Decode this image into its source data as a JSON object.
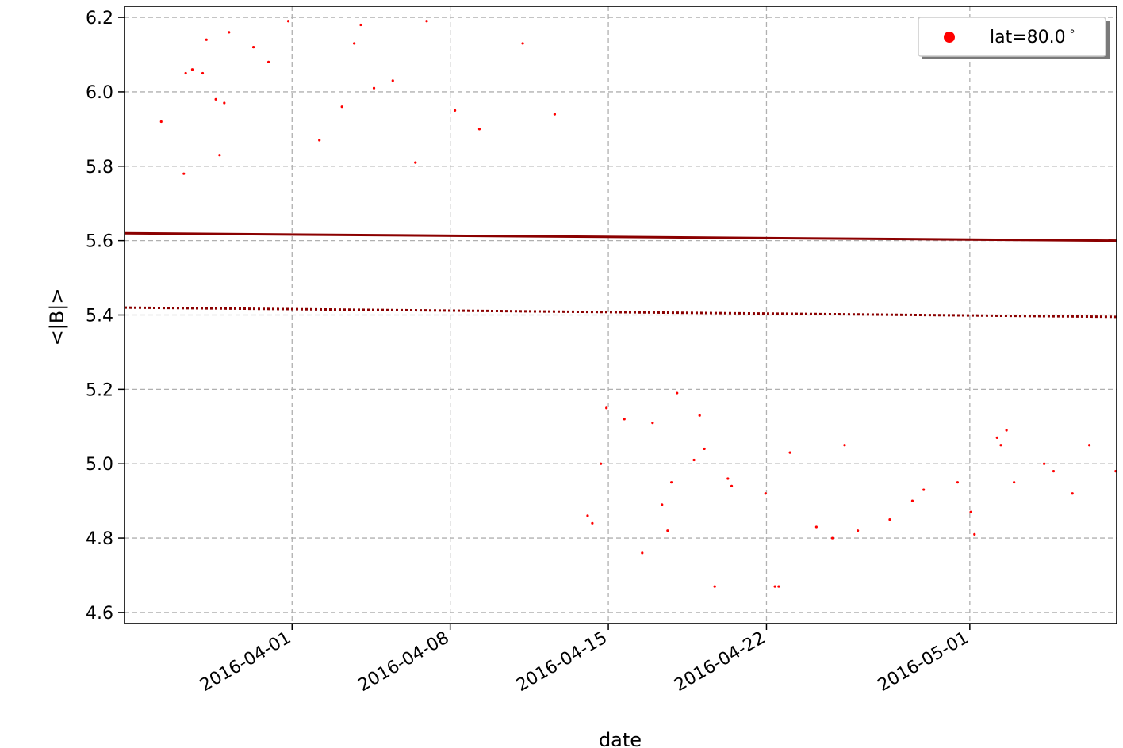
{
  "chart_data": {
    "type": "scatter",
    "title": "",
    "xlabel": "date",
    "ylabel": "<|B|>",
    "xlim": [
      "2016-03-24T14:00",
      "2016-05-07T12:00"
    ],
    "ylim": [
      4.57,
      6.23
    ],
    "grid": true,
    "grid_style": "dashed",
    "legend_position": "top-right",
    "x_ticks": [
      "2016-04-01",
      "2016-04-08",
      "2016-04-15",
      "2016-04-22",
      "2016-05-01"
    ],
    "y_ticks": [
      "4.6",
      "4.8",
      "5.0",
      "5.2",
      "5.4",
      "5.6",
      "5.8",
      "6.0",
      "6.2"
    ],
    "series": [
      {
        "name": "lat=80.0$^\\circ$",
        "legend_label": "lat=80.0",
        "legend_superscript": "∘",
        "kind": "scatter",
        "color": "#ff0000",
        "points": [
          [
            "2016-03-26T05:00",
            5.92
          ],
          [
            "2016-03-27T05:00",
            5.78
          ],
          [
            "2016-03-27T07:00",
            6.05
          ],
          [
            "2016-03-27T14:00",
            6.06
          ],
          [
            "2016-03-28T01:00",
            6.05
          ],
          [
            "2016-03-28T05:00",
            6.14
          ],
          [
            "2016-03-28T15:00",
            5.98
          ],
          [
            "2016-03-28T19:00",
            5.83
          ],
          [
            "2016-03-29T00:00",
            5.97
          ],
          [
            "2016-03-29T05:00",
            6.16
          ],
          [
            "2016-03-30T07:00",
            6.12
          ],
          [
            "2016-03-30T23:00",
            6.08
          ],
          [
            "2016-03-31T20:00",
            6.19
          ],
          [
            "2016-04-02T05:00",
            5.87
          ],
          [
            "2016-04-03T05:00",
            5.96
          ],
          [
            "2016-04-03T18:00",
            6.13
          ],
          [
            "2016-04-04T01:00",
            6.18
          ],
          [
            "2016-04-04T15:00",
            6.01
          ],
          [
            "2016-04-05T11:00",
            6.03
          ],
          [
            "2016-04-06T11:00",
            5.81
          ],
          [
            "2016-04-06T23:00",
            6.19
          ],
          [
            "2016-04-08T05:00",
            5.95
          ],
          [
            "2016-04-09T07:00",
            5.9
          ],
          [
            "2016-04-11T05:00",
            6.13
          ],
          [
            "2016-04-12T15:00",
            5.94
          ],
          [
            "2016-04-14T02:00",
            4.86
          ],
          [
            "2016-04-14T07:00",
            4.84
          ],
          [
            "2016-04-14T16:00",
            5.0
          ],
          [
            "2016-04-14T22:00",
            5.15
          ],
          [
            "2016-04-15T17:00",
            5.12
          ],
          [
            "2016-04-16T12:00",
            4.76
          ],
          [
            "2016-04-16T23:00",
            5.11
          ],
          [
            "2016-04-17T09:00",
            4.89
          ],
          [
            "2016-04-17T15:00",
            4.82
          ],
          [
            "2016-04-17T19:00",
            4.95
          ],
          [
            "2016-04-18T01:00",
            5.19
          ],
          [
            "2016-04-18T19:00",
            5.01
          ],
          [
            "2016-04-19T01:00",
            5.13
          ],
          [
            "2016-04-19T06:00",
            5.04
          ],
          [
            "2016-04-19T17:00",
            4.67
          ],
          [
            "2016-04-20T07:00",
            4.96
          ],
          [
            "2016-04-20T11:00",
            4.94
          ],
          [
            "2016-04-21T23:00",
            4.92
          ],
          [
            "2016-04-22T09:00",
            4.67
          ],
          [
            "2016-04-22T13:00",
            4.67
          ],
          [
            "2016-04-23T01:00",
            5.03
          ],
          [
            "2016-04-24T05:00",
            4.83
          ],
          [
            "2016-04-24T22:00",
            4.8
          ],
          [
            "2016-04-25T11:00",
            5.05
          ],
          [
            "2016-04-26T01:00",
            4.82
          ],
          [
            "2016-04-27T11:00",
            4.85
          ],
          [
            "2016-04-28T11:00",
            4.9
          ],
          [
            "2016-04-28T23:00",
            4.93
          ],
          [
            "2016-04-30T11:00",
            4.95
          ],
          [
            "2016-05-01T01:00",
            4.87
          ],
          [
            "2016-05-01T05:00",
            4.81
          ],
          [
            "2016-05-02T05:00",
            5.07
          ],
          [
            "2016-05-02T09:00",
            5.05
          ],
          [
            "2016-05-02T15:00",
            5.09
          ],
          [
            "2016-05-02T23:00",
            4.95
          ],
          [
            "2016-05-04T07:00",
            5.0
          ],
          [
            "2016-05-04T17:00",
            4.98
          ],
          [
            "2016-05-05T13:00",
            4.92
          ],
          [
            "2016-05-06T07:00",
            5.05
          ],
          [
            "2016-05-07T11:00",
            4.98
          ]
        ]
      },
      {
        "kind": "line",
        "style": "solid",
        "color": "#8b0000",
        "points": [
          [
            "2016-03-24T14:00",
            5.62
          ],
          [
            "2016-05-07T12:00",
            5.6
          ]
        ]
      },
      {
        "kind": "line",
        "style": "dotted",
        "color": "#8b0000",
        "points": [
          [
            "2016-03-24T14:00",
            5.42
          ],
          [
            "2016-05-07T12:00",
            5.395
          ]
        ]
      }
    ]
  }
}
